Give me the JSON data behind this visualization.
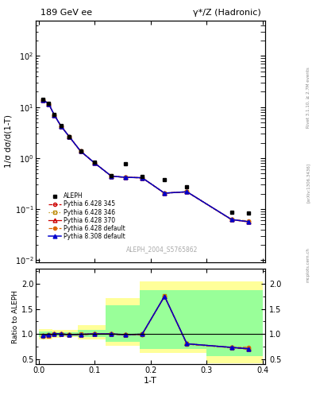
{
  "title_left": "189 GeV ee",
  "title_right": "γ*/Z (Hadronic)",
  "ylabel_main": "1/σ dσ/d(1-T)",
  "ylabel_ratio": "Ratio to ALEPH",
  "xlabel": "1-T",
  "rivet_label": "Rivet 3.1.10, ≥ 2.7M events",
  "arxiv_label": "[arXiv:1306.3436]",
  "dataset_label": "ALEPH_2004_S5765862",
  "mcplots_label": "mcplots.cern.ch",
  "aleph_x": [
    0.008,
    0.018,
    0.028,
    0.04,
    0.055,
    0.075,
    0.1,
    0.13,
    0.155,
    0.185,
    0.225,
    0.265,
    0.345,
    0.375
  ],
  "aleph_y": [
    14.0,
    11.8,
    7.1,
    4.3,
    2.65,
    1.4,
    0.82,
    0.46,
    0.78,
    0.43,
    0.38,
    0.27,
    0.088,
    0.083
  ],
  "mc_x": [
    0.008,
    0.018,
    0.028,
    0.04,
    0.055,
    0.075,
    0.1,
    0.13,
    0.155,
    0.185,
    0.225,
    0.265,
    0.345,
    0.375
  ],
  "py6_345_y": [
    13.8,
    11.5,
    6.95,
    4.22,
    2.6,
    1.36,
    0.8,
    0.44,
    0.42,
    0.41,
    0.205,
    0.218,
    0.062,
    0.056
  ],
  "py6_346_y": [
    13.85,
    11.52,
    6.97,
    4.23,
    2.61,
    1.37,
    0.805,
    0.445,
    0.422,
    0.413,
    0.207,
    0.22,
    0.063,
    0.057
  ],
  "py6_370_y": [
    13.82,
    11.51,
    6.96,
    4.22,
    2.605,
    1.365,
    0.802,
    0.443,
    0.421,
    0.412,
    0.206,
    0.219,
    0.0625,
    0.0565
  ],
  "py6_def_y": [
    13.8,
    11.5,
    6.95,
    4.22,
    2.6,
    1.36,
    0.8,
    0.44,
    0.42,
    0.41,
    0.205,
    0.218,
    0.062,
    0.059
  ],
  "py8_def_y": [
    13.82,
    11.52,
    6.96,
    4.22,
    2.605,
    1.365,
    0.802,
    0.443,
    0.421,
    0.412,
    0.206,
    0.219,
    0.0625,
    0.057
  ],
  "ratio_x": [
    0.008,
    0.018,
    0.028,
    0.04,
    0.055,
    0.075,
    0.1,
    0.13,
    0.155,
    0.185,
    0.225,
    0.265,
    0.345,
    0.375
  ],
  "ratio_py6_345": [
    0.96,
    0.975,
    1.0,
    1.0,
    0.985,
    0.99,
    1.0,
    1.0,
    0.985,
    0.99,
    1.75,
    0.8,
    0.73,
    0.7
  ],
  "ratio_py6_346": [
    0.97,
    0.983,
    1.01,
    1.005,
    0.99,
    1.0,
    1.005,
    1.005,
    0.99,
    1.0,
    1.755,
    0.81,
    0.74,
    0.71
  ],
  "ratio_py6_370": [
    0.965,
    0.978,
    1.005,
    1.002,
    0.987,
    0.995,
    1.002,
    1.002,
    0.988,
    0.997,
    1.752,
    0.807,
    0.735,
    0.705
  ],
  "ratio_py6_def": [
    0.96,
    0.975,
    1.0,
    1.0,
    0.985,
    0.99,
    1.0,
    1.0,
    0.985,
    0.99,
    1.75,
    0.8,
    0.73,
    0.74
  ],
  "ratio_py8_def": [
    0.965,
    0.983,
    1.005,
    1.002,
    0.988,
    0.995,
    1.002,
    1.002,
    0.988,
    0.997,
    1.752,
    0.807,
    0.735,
    0.71
  ],
  "yellow_band_edges": [
    0.0,
    0.01,
    0.025,
    0.04,
    0.07,
    0.12,
    0.18,
    0.3,
    0.36,
    0.4
  ],
  "yellow_band_lo": [
    0.89,
    0.89,
    0.92,
    0.935,
    0.895,
    0.77,
    0.62,
    0.42,
    0.42,
    0.42
  ],
  "yellow_band_hi": [
    1.1,
    1.1,
    1.09,
    1.075,
    1.18,
    1.72,
    2.05,
    2.05,
    2.05,
    2.05
  ],
  "green_band_edges": [
    0.0,
    0.01,
    0.025,
    0.04,
    0.07,
    0.12,
    0.18,
    0.3,
    0.36,
    0.4
  ],
  "green_band_lo": [
    0.94,
    0.94,
    0.96,
    0.963,
    0.94,
    0.84,
    0.7,
    0.56,
    0.56,
    0.56
  ],
  "green_band_hi": [
    1.05,
    1.05,
    1.04,
    1.038,
    1.09,
    1.58,
    1.88,
    1.88,
    1.88,
    1.88
  ],
  "color_py6_345": "#cc0000",
  "color_py6_346": "#bb8800",
  "color_py6_370": "#cc0000",
  "color_py6_def": "#dd6600",
  "color_py8_def": "#0000cc",
  "ylim_main": [
    0.009,
    500
  ],
  "ylim_ratio": [
    0.4,
    2.3
  ],
  "xlim_main": [
    -0.005,
    0.405
  ],
  "xlim_ratio": [
    -0.005,
    0.405
  ]
}
